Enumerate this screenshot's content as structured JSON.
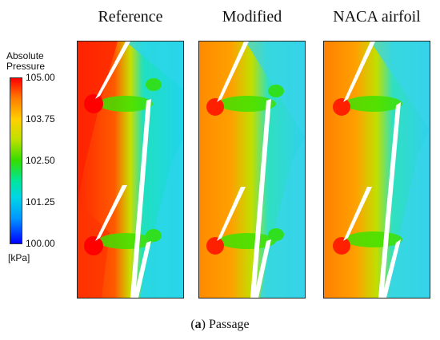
{
  "panels": [
    {
      "title": "Reference"
    },
    {
      "title": "Modified"
    },
    {
      "title": "NACA airfoil"
    }
  ],
  "legend": {
    "title_line1": "Absolute",
    "title_line2": "Pressure",
    "ticks": [
      "105.00",
      "103.75",
      "102.50",
      "101.25",
      "100.00"
    ],
    "unit": "[kPa]",
    "colors": [
      "#ff0000",
      "#ff7a00",
      "#ffd000",
      "#33dd00",
      "#00d6e6",
      "#0096ff",
      "#0000ff"
    ]
  },
  "caption": {
    "label": "a",
    "text": "Passage"
  }
}
